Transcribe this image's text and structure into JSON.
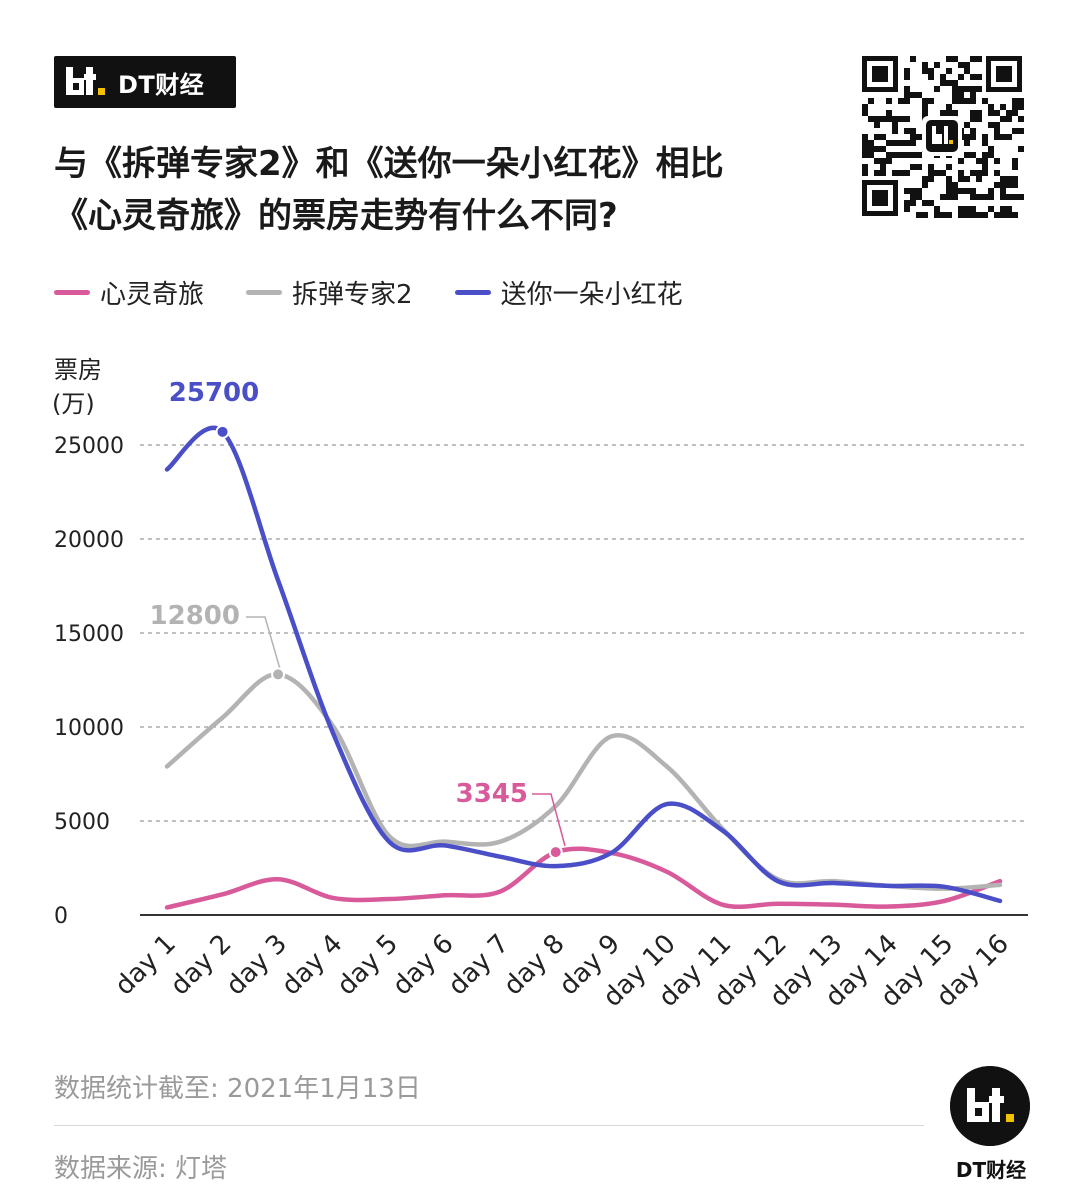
{
  "header": {
    "brand_label": "DT财经",
    "title_line1": "与《拆弹专家2》和《送你一朵小红花》相比",
    "title_line2": "《心灵奇旅》的票房走势有什么不同?"
  },
  "colors": {
    "soul": "#d95a9a",
    "shock_wave": "#b3b3b3",
    "flower": "#4a4fc8",
    "brand_dark": "#111111",
    "accent_yellow": "#f2c200",
    "grid": "#9a9a9a",
    "axis": "#333333"
  },
  "legend": [
    {
      "name": "心灵奇旅",
      "color_key": "soul"
    },
    {
      "name": "拆弹专家2",
      "color_key": "shock_wave"
    },
    {
      "name": "送你一朵小红花",
      "color_key": "flower"
    }
  ],
  "footer": {
    "cutoff": "数据统计截至: 2021年1月13日",
    "source": "数据来源: 灯塔",
    "brand_label": "DT财经"
  },
  "chart_data": {
    "type": "line",
    "title": "与《拆弹专家2》和《送你一朵小红花》相比《心灵奇旅》的票房走势有什么不同?",
    "ylabel_line1": "票房",
    "ylabel_line2": "(万)",
    "xlabel": "",
    "ylim": [
      0,
      25000
    ],
    "yticks": [
      0,
      5000,
      10000,
      15000,
      20000,
      25000
    ],
    "grid": true,
    "legend_position": "top-left",
    "categories": [
      "day 1",
      "day 2",
      "day 3",
      "day 4",
      "day 5",
      "day 6",
      "day 7",
      "day 8",
      "day 9",
      "day 10",
      "day 11",
      "day 12",
      "day 13",
      "day 14",
      "day 15",
      "day 16"
    ],
    "series": [
      {
        "name": "心灵奇旅",
        "color_key": "soul",
        "values": [
          400,
          1100,
          1900,
          900,
          850,
          1050,
          1250,
          3345,
          3300,
          2300,
          550,
          600,
          550,
          450,
          750,
          1800
        ]
      },
      {
        "name": "拆弹专家2",
        "color_key": "shock_wave",
        "values": [
          7900,
          10500,
          12800,
          10000,
          4200,
          3900,
          3900,
          5800,
          9500,
          7900,
          4600,
          1900,
          1800,
          1550,
          1400,
          1600
        ]
      },
      {
        "name": "送你一朵小红花",
        "color_key": "flower",
        "values": [
          23700,
          25700,
          17800,
          9600,
          3900,
          3700,
          3100,
          2600,
          3300,
          5900,
          4500,
          1800,
          1700,
          1550,
          1500,
          750
        ]
      }
    ],
    "annotations": [
      {
        "series": "送你一朵小红花",
        "index": 1,
        "label": "25700"
      },
      {
        "series": "拆弹专家2",
        "index": 2,
        "label": "12800"
      },
      {
        "series": "心灵奇旅",
        "index": 7,
        "label": "3345"
      }
    ]
  }
}
